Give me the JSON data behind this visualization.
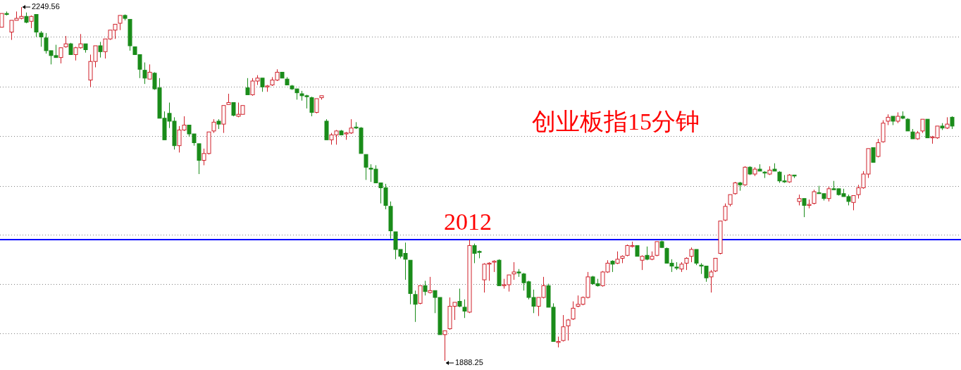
{
  "chart_data": {
    "type": "candlestick",
    "title": "创业板指15分钟",
    "categories": [
      null,
      null,
      null,
      null,
      null,
      null,
      null,
      null,
      null,
      null,
      null,
      null,
      null,
      null,
      null,
      null,
      null,
      null,
      null,
      null,
      null,
      null,
      null,
      null,
      null,
      null,
      null,
      null,
      null,
      null,
      null,
      null,
      null,
      null,
      null,
      null,
      null,
      null,
      null,
      null,
      null,
      null,
      null,
      null,
      null,
      null,
      null,
      null,
      null,
      null,
      null,
      null,
      null,
      null,
      null,
      null,
      null,
      null,
      null,
      null,
      null,
      null,
      null,
      null,
      null,
      null,
      null,
      null,
      null,
      null,
      null,
      null,
      null,
      null,
      null,
      null,
      null,
      null,
      null,
      null,
      null,
      null,
      null,
      null,
      null,
      null,
      null,
      null,
      null,
      null,
      null,
      null,
      null,
      null,
      null,
      null,
      null,
      null,
      null,
      null,
      null,
      null,
      null,
      null,
      null,
      null,
      null,
      null,
      null,
      null,
      null,
      null,
      null,
      null,
      null,
      null,
      null,
      null,
      null,
      null,
      null,
      null,
      null,
      null,
      null,
      null,
      null,
      null,
      null,
      null,
      null,
      null,
      null,
      null,
      null,
      null,
      null,
      null,
      null,
      null,
      null,
      null,
      null,
      null,
      null,
      null,
      null,
      null,
      null,
      null,
      null,
      null,
      null,
      null,
      null,
      null,
      null,
      null,
      null,
      null,
      null,
      null,
      null,
      null,
      null,
      null,
      null,
      null,
      null,
      null,
      null,
      null,
      null,
      null,
      null,
      null,
      null,
      null,
      null,
      null,
      null,
      null,
      null,
      null,
      null,
      null,
      null,
      null,
      null,
      null,
      null,
      null,
      null,
      null
    ],
    "ohlc": [
      [
        2229,
        2243,
        2229,
        2243
      ],
      [
        2243,
        2245,
        2241,
        2242
      ],
      [
        2224,
        2236,
        2216,
        2236
      ],
      [
        2236,
        2245,
        2236,
        2238
      ],
      [
        2238,
        2249.56,
        2237,
        2240
      ],
      [
        2240,
        2244,
        2233,
        2234
      ],
      [
        2235,
        2241,
        2228,
        2240
      ],
      [
        2242,
        2242,
        2219,
        2224
      ],
      [
        2223,
        2225,
        2209,
        2219
      ],
      [
        2218,
        2223,
        2202,
        2205
      ],
      [
        2205,
        2205,
        2191,
        2200
      ],
      [
        2200,
        2211,
        2198,
        2198
      ],
      [
        2198,
        2208,
        2192,
        2208
      ],
      [
        2209,
        2220,
        2208,
        2212
      ],
      [
        2212,
        2213,
        2201,
        2201
      ],
      [
        2201,
        2209,
        2195,
        2208
      ],
      [
        2208,
        2222,
        2207,
        2212
      ],
      [
        2212,
        2212,
        2203,
        2206
      ],
      [
        2175,
        2201,
        2168,
        2194
      ],
      [
        2194,
        2210,
        2188,
        2210
      ],
      [
        2210,
        2214,
        2198,
        2204
      ],
      [
        2204,
        2217,
        2197,
        2217
      ],
      [
        2217,
        2226,
        2216,
        2226
      ],
      [
        2226,
        2232,
        2217,
        2232
      ],
      [
        2233,
        2241,
        2226,
        2241
      ],
      [
        2241,
        2242,
        2236,
        2238
      ],
      [
        2237,
        2237,
        2205,
        2210
      ],
      [
        2209,
        2209,
        2201,
        2201
      ],
      [
        2201,
        2201,
        2177,
        2186
      ],
      [
        2185,
        2193,
        2171,
        2177
      ],
      [
        2176,
        2191,
        2176,
        2183
      ],
      [
        2182,
        2183,
        2165,
        2166
      ],
      [
        2167,
        2177,
        2136,
        2136
      ],
      [
        2136,
        2143,
        2114,
        2114
      ],
      [
        2141,
        2152,
        2126,
        2133
      ],
      [
        2133,
        2137,
        2104,
        2108
      ],
      [
        2108,
        2128,
        2101,
        2124
      ],
      [
        2124,
        2138,
        2123,
        2129
      ],
      [
        2129,
        2129,
        2117,
        2120
      ],
      [
        2120,
        2120,
        2108,
        2111
      ],
      [
        2110,
        2110,
        2079,
        2093
      ],
      [
        2093,
        2105,
        2088,
        2100
      ],
      [
        2100,
        2122,
        2099,
        2122
      ],
      [
        2123,
        2135,
        2121,
        2132
      ],
      [
        2133,
        2135,
        2125,
        2130
      ],
      [
        2130,
        2149,
        2121,
        2149
      ],
      [
        2150,
        2161,
        2150,
        2152
      ],
      [
        2152,
        2152,
        2138,
        2139
      ],
      [
        2138,
        2152,
        2137,
        2140
      ],
      [
        2140,
        2149,
        2140,
        2149
      ],
      [
        2167,
        2177,
        2160,
        2160
      ],
      [
        2160,
        2177,
        2159,
        2174
      ],
      [
        2174,
        2180,
        2170,
        2177
      ],
      [
        2177,
        2177,
        2163,
        2168
      ],
      [
        2168,
        2170,
        2163,
        2169
      ],
      [
        2170,
        2178,
        2169,
        2175
      ],
      [
        2175,
        2186,
        2174,
        2183
      ],
      [
        2183,
        2183,
        2177,
        2177
      ],
      [
        2176,
        2178,
        2170,
        2170
      ],
      [
        2169,
        2170,
        2165,
        2166
      ],
      [
        2166,
        2166,
        2155,
        2162
      ],
      [
        2161,
        2164,
        2154,
        2159
      ],
      [
        2159,
        2160,
        2146,
        2158
      ],
      [
        2157,
        2158,
        2138,
        2142
      ],
      [
        2142,
        2156,
        2141,
        2156
      ],
      [
        2157,
        2159,
        2155,
        2159
      ],
      [
        2133,
        2135,
        2114,
        2114
      ],
      [
        2114,
        2121,
        2109,
        2119
      ],
      [
        2119,
        2124,
        2109,
        2123
      ],
      [
        2123,
        2124,
        2119,
        2119
      ],
      [
        2120,
        2122,
        2114,
        2121
      ],
      [
        2121,
        2135,
        2120,
        2126
      ],
      [
        2127,
        2132,
        2125,
        2126
      ],
      [
        2126,
        2127,
        2100,
        2100
      ],
      [
        2099,
        2099,
        2073,
        2086
      ],
      [
        2085,
        2089,
        2071,
        2084
      ],
      [
        2084,
        2088,
        2070,
        2070
      ],
      [
        2070,
        2070,
        2049,
        2065
      ],
      [
        2065,
        2069,
        2043,
        2047
      ],
      [
        2046,
        2051,
        2013,
        2021
      ],
      [
        2020,
        2020,
        1992,
        2002
      ],
      [
        2002,
        2002,
        1993,
        1995
      ],
      [
        1998,
        2009,
        1971,
        1992
      ],
      [
        1991,
        1991,
        1946,
        1957
      ],
      [
        1956,
        1960,
        1928,
        1946
      ],
      [
        1947,
        1965,
        1946,
        1965
      ],
      [
        1965,
        1970,
        1955,
        1959
      ],
      [
        1958,
        1974,
        1957,
        1960
      ],
      [
        1960,
        1960,
        1937,
        1953
      ],
      [
        1953,
        1953,
        1915,
        1915
      ],
      [
        1915,
        1919,
        1888.25,
        1919
      ],
      [
        1921,
        1953,
        1920,
        1944
      ],
      [
        1944,
        1948,
        1930,
        1948
      ],
      [
        1949,
        1962,
        1943,
        1944
      ],
      [
        1943,
        1951,
        1932,
        1939
      ],
      [
        1938,
        2012,
        1937,
        2006
      ],
      [
        2006,
        2008,
        1988,
        1998
      ],
      [
        2000,
        2001,
        1993,
        1999
      ],
      [
        1971,
        1988,
        1958,
        1987
      ],
      [
        1987,
        1989,
        1970,
        1988
      ],
      [
        1989,
        1991,
        1979,
        1990
      ],
      [
        1991,
        1992,
        1965,
        1965
      ],
      [
        1965,
        1972,
        1962,
        1966
      ],
      [
        1966,
        1976,
        1959,
        1976
      ],
      [
        1977,
        1989,
        1971,
        1979
      ],
      [
        1979,
        1982,
        1974,
        1978
      ],
      [
        1977,
        1978,
        1960,
        1968
      ],
      [
        1969,
        1970,
        1951,
        1953
      ],
      [
        1953,
        1961,
        1937,
        1944
      ],
      [
        1944,
        1953,
        1934,
        1953
      ],
      [
        1953,
        1974,
        1952,
        1965
      ],
      [
        1965,
        1967,
        1943,
        1943
      ],
      [
        1943,
        1947,
        1908,
        1908
      ],
      [
        1907,
        1913,
        1902,
        1908
      ],
      [
        1909,
        1935,
        1908,
        1923
      ],
      [
        1924,
        1931,
        1909,
        1930
      ],
      [
        1931,
        1949,
        1930,
        1942
      ],
      [
        1944,
        1955,
        1943,
        1946
      ],
      [
        1946,
        1954,
        1945,
        1953
      ],
      [
        1953,
        1979,
        1952,
        1974
      ],
      [
        1974,
        1975,
        1966,
        1967
      ],
      [
        1967,
        1972,
        1964,
        1965
      ],
      [
        1965,
        1980,
        1964,
        1979
      ],
      [
        1979,
        1991,
        1978,
        1988
      ],
      [
        1990,
        1991,
        1979,
        1987
      ],
      [
        1988,
        2000,
        1987,
        1992
      ],
      [
        1993,
        1996,
        1988,
        1995
      ],
      [
        1996,
        2007,
        1995,
        2006
      ],
      [
        2005,
        2010,
        2004,
        2006
      ],
      [
        2006,
        2006,
        1995,
        1995
      ],
      [
        1991,
        1996,
        1981,
        1995
      ],
      [
        1996,
        2005,
        1991,
        1992
      ],
      [
        1992,
        2000,
        1991,
        1995
      ],
      [
        1996,
        2010,
        1995,
        2010
      ],
      [
        2010,
        2011,
        2004,
        2004
      ],
      [
        2003,
        2004,
        1988,
        1988
      ],
      [
        1988,
        1992,
        1979,
        1985
      ],
      [
        1984,
        1989,
        1981,
        1983
      ],
      [
        1982,
        1989,
        1979,
        1987
      ],
      [
        1988,
        1994,
        1981,
        1993
      ],
      [
        1995,
        2004,
        1989,
        2002
      ],
      [
        2002,
        2002,
        1986,
        1988
      ],
      [
        1986,
        1988,
        1977,
        1985
      ],
      [
        1985,
        1985,
        1969,
        1973
      ],
      [
        1974,
        1981,
        1958,
        1979
      ],
      [
        1980,
        1993,
        1979,
        1993
      ],
      [
        1998,
        2031,
        1997,
        2031
      ],
      [
        2032,
        2049,
        2031,
        2046
      ],
      [
        2048,
        2058,
        2046,
        2058
      ],
      [
        2059,
        2071,
        2058,
        2070
      ],
      [
        2070,
        2071,
        2062,
        2068
      ],
      [
        2068,
        2087,
        2067,
        2086
      ],
      [
        2086,
        2087,
        2078,
        2079
      ],
      [
        2079,
        2086,
        2077,
        2084
      ],
      [
        2084,
        2089,
        2082,
        2082
      ],
      [
        2081,
        2082,
        2075,
        2080
      ],
      [
        2079,
        2087,
        2078,
        2083
      ],
      [
        2084,
        2090,
        2082,
        2082
      ],
      [
        2081,
        2082,
        2070,
        2072
      ],
      [
        2072,
        2078,
        2070,
        2071
      ],
      [
        2071,
        2079,
        2070,
        2078
      ],
      [
        2078,
        2078,
        2075,
        2077
      ],
      [
        2051,
        2058,
        2047,
        2054
      ],
      [
        2054,
        2054,
        2035,
        2047
      ],
      [
        2047,
        2053,
        2044,
        2048
      ],
      [
        2049,
        2063,
        2048,
        2061
      ],
      [
        2060,
        2067,
        2059,
        2059
      ],
      [
        2059,
        2059,
        2052,
        2054
      ],
      [
        2054,
        2066,
        2051,
        2064
      ],
      [
        2064,
        2072,
        2063,
        2063
      ],
      [
        2064,
        2064,
        2057,
        2058
      ],
      [
        2059,
        2064,
        2056,
        2056
      ],
      [
        2056,
        2058,
        2047,
        2051
      ],
      [
        2050,
        2057,
        2042,
        2057
      ],
      [
        2058,
        2068,
        2054,
        2065
      ],
      [
        2065,
        2082,
        2064,
        2079
      ],
      [
        2079,
        2105,
        2075,
        2105
      ],
      [
        2106,
        2106,
        2091,
        2091
      ],
      [
        2097,
        2115,
        2096,
        2111
      ],
      [
        2112,
        2134,
        2111,
        2131
      ],
      [
        2133,
        2140,
        2129,
        2137
      ],
      [
        2138,
        2138,
        2129,
        2133
      ],
      [
        2133,
        2142,
        2131,
        2138
      ],
      [
        2138,
        2143,
        2135,
        2136
      ],
      [
        2135,
        2136,
        2123,
        2123
      ],
      [
        2122,
        2125,
        2115,
        2115
      ],
      [
        2115,
        2123,
        2114,
        2121
      ],
      [
        2123,
        2135,
        2121,
        2135
      ],
      [
        2135,
        2135,
        2116,
        2116
      ],
      [
        2116,
        2118,
        2110,
        2117
      ],
      [
        2116,
        2128,
        2115,
        2128
      ],
      [
        2128,
        2131,
        2124,
        2126
      ],
      [
        2126,
        2137,
        2125,
        2130
      ],
      [
        2137,
        2138,
        2125,
        2128
      ]
    ],
    "yticks": [
      {
        "value": 2219,
        "label": null
      },
      {
        "value": 2168,
        "label": null
      },
      {
        "value": 2118,
        "label": null
      },
      {
        "value": 2067,
        "label": null
      },
      {
        "value": 2017,
        "label": null
      },
      {
        "value": 1967,
        "label": null
      },
      {
        "value": 1916,
        "label": null
      }
    ],
    "grid": "y",
    "ref_lines": [
      {
        "axis": "y",
        "value": 2012,
        "label": "2012",
        "color": "#0000ff"
      }
    ],
    "annotations": [
      "2249.56",
      "1888.25"
    ]
  }
}
